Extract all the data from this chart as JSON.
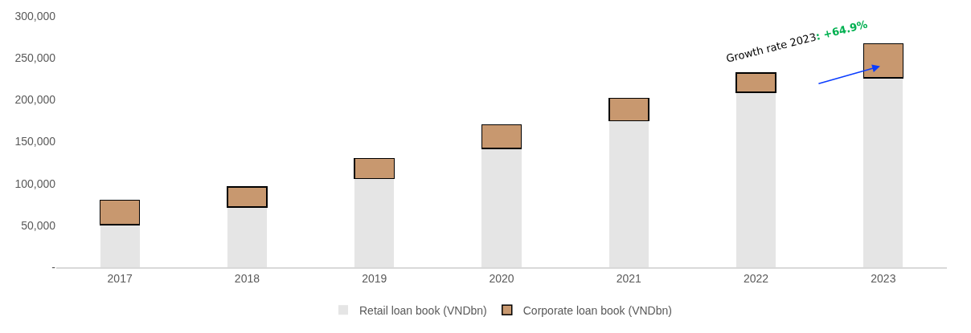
{
  "chart_data": {
    "type": "bar",
    "stacked": true,
    "categories": [
      "2017",
      "2018",
      "2019",
      "2020",
      "2021",
      "2022",
      "2023"
    ],
    "series": [
      {
        "name": "Retail loan book (VNDbn)",
        "color": "#e5e5e5",
        "values": [
          51000,
          72000,
          106000,
          142000,
          175000,
          209000,
          226000
        ]
      },
      {
        "name": "Corporate loan book (VNDbn)",
        "color": "#c8986f",
        "values": [
          29000,
          24000,
          24000,
          28000,
          27000,
          23000,
          41000
        ]
      }
    ],
    "ylim": [
      0,
      300000
    ],
    "yticks": [
      {
        "value": 0,
        "label": "-"
      },
      {
        "value": 50000,
        "label": "50,000"
      },
      {
        "value": 100000,
        "label": "100,000"
      },
      {
        "value": 150000,
        "label": "150,000"
      },
      {
        "value": 200000,
        "label": "200,000"
      },
      {
        "value": 250000,
        "label": "250,000"
      },
      {
        "value": 300000,
        "label": "300,000"
      }
    ],
    "legend": "bottom",
    "annotations": [
      "Growth rate 2023: +64.9%"
    ]
  }
}
